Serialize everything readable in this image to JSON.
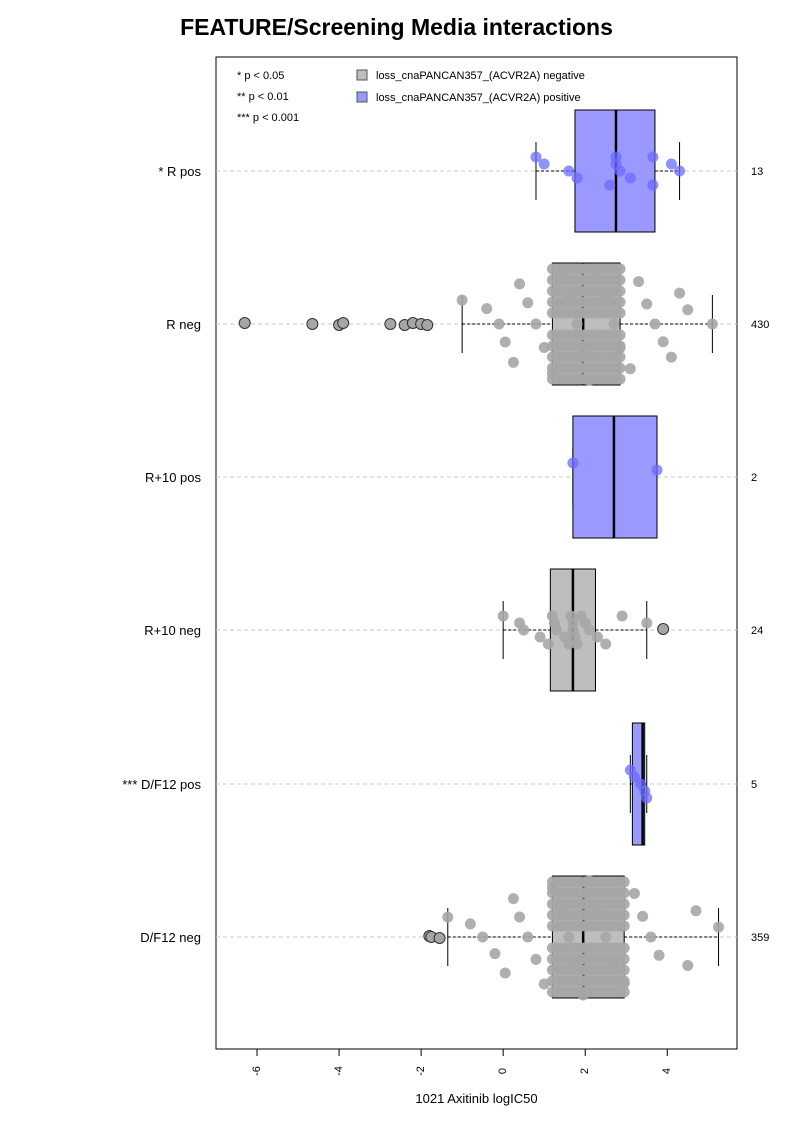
{
  "chart_data": {
    "type": "boxplot-beeswarm",
    "title": "FEATURE/Screening Media interactions",
    "xlabel": "1021 Axitinib logIC50",
    "xlim": [
      -7.0,
      5.7
    ],
    "xticks": [
      -6,
      -4,
      -2,
      0,
      2,
      4
    ],
    "xtick_labels": [
      "-6",
      "-4",
      "-2",
      "0",
      "2",
      "4"
    ],
    "grid": "dashed horizontal at each group",
    "legend_position": "top",
    "significance_legend": [
      "* p < 0.05",
      "** p < 0.01",
      "*** p < 0.001"
    ],
    "legend": [
      {
        "label": "loss_cnaPANCAN357_(ACVR2A) negative",
        "color": "#bebebe"
      },
      {
        "label": "loss_cnaPANCAN357_(ACVR2A) positive",
        "color": "#9999ff"
      }
    ],
    "colors": {
      "negative": "#bebebe",
      "positive": "#9999ff",
      "point_negative": "#a6a6a6",
      "point_positive": "#6b6bff",
      "grid": "#c8c8c8"
    },
    "groups": [
      {
        "label": "* R pos",
        "n": "13",
        "status": "positive",
        "whisker_low": 0.8,
        "q1": 1.75,
        "median": 2.75,
        "q3": 3.7,
        "whisker_high": 4.3,
        "points": [
          0.8,
          1.0,
          1.6,
          1.8,
          2.6,
          2.75,
          2.75,
          2.85,
          3.1,
          3.65,
          3.65,
          4.1,
          4.3
        ],
        "outliers": []
      },
      {
        "label": "R neg",
        "n": "430",
        "status": "negative",
        "whisker_low": -1.0,
        "q1": 1.2,
        "median": 1.95,
        "q3": 2.85,
        "whisker_high": 5.1,
        "points": [
          -1.0,
          -0.4,
          -0.1,
          0.05,
          0.25,
          0.4,
          0.6,
          0.8,
          1.0,
          1.2,
          1.4,
          1.6,
          1.8,
          1.95,
          2.1,
          2.3,
          2.5,
          2.7,
          2.85,
          3.1,
          3.3,
          3.5,
          3.7,
          3.9,
          4.1,
          4.3,
          4.5,
          5.1
        ],
        "outliers": [
          -6.3,
          -4.65,
          -4.0,
          -3.9,
          -2.75,
          -2.4,
          -2.2,
          -2.0,
          -1.85
        ]
      },
      {
        "label": "R+10 pos",
        "n": "2",
        "status": "positive",
        "whisker_low": 1.7,
        "q1": 1.7,
        "median": 2.7,
        "q3": 3.75,
        "whisker_high": 3.75,
        "points": [
          1.7,
          3.75
        ],
        "outliers": []
      },
      {
        "label": "R+10 neg",
        "n": "24",
        "status": "negative",
        "whisker_low": 0.0,
        "q1": 1.15,
        "median": 1.7,
        "q3": 2.25,
        "whisker_high": 3.5,
        "points": [
          0.0,
          0.4,
          0.5,
          0.9,
          1.1,
          1.2,
          1.25,
          1.3,
          1.5,
          1.6,
          1.65,
          1.7,
          1.7,
          1.75,
          1.8,
          1.9,
          2.0,
          2.1,
          2.3,
          2.5,
          2.9,
          3.5
        ],
        "outliers": [
          3.9
        ]
      },
      {
        "label": "*** D/F12 pos",
        "n": "5",
        "status": "positive",
        "whisker_low": 3.1,
        "q1": 3.15,
        "median": 3.4,
        "q3": 3.45,
        "whisker_high": 3.5,
        "points": [
          3.1,
          3.2,
          3.35,
          3.45,
          3.5
        ],
        "outliers": []
      },
      {
        "label": "D/F12 neg",
        "n": "359",
        "status": "negative",
        "whisker_low": -1.35,
        "q1": 1.2,
        "median": 1.95,
        "q3": 2.95,
        "whisker_high": 5.25,
        "points": [
          -1.35,
          -0.8,
          -0.5,
          -0.2,
          0.05,
          0.25,
          0.4,
          0.6,
          0.8,
          1.0,
          1.2,
          1.4,
          1.6,
          1.8,
          1.95,
          2.1,
          2.3,
          2.5,
          2.7,
          2.95,
          3.2,
          3.4,
          3.6,
          3.8,
          4.5,
          4.7,
          5.25
        ],
        "outliers": [
          -1.8,
          -1.75,
          -1.55
        ]
      }
    ]
  }
}
